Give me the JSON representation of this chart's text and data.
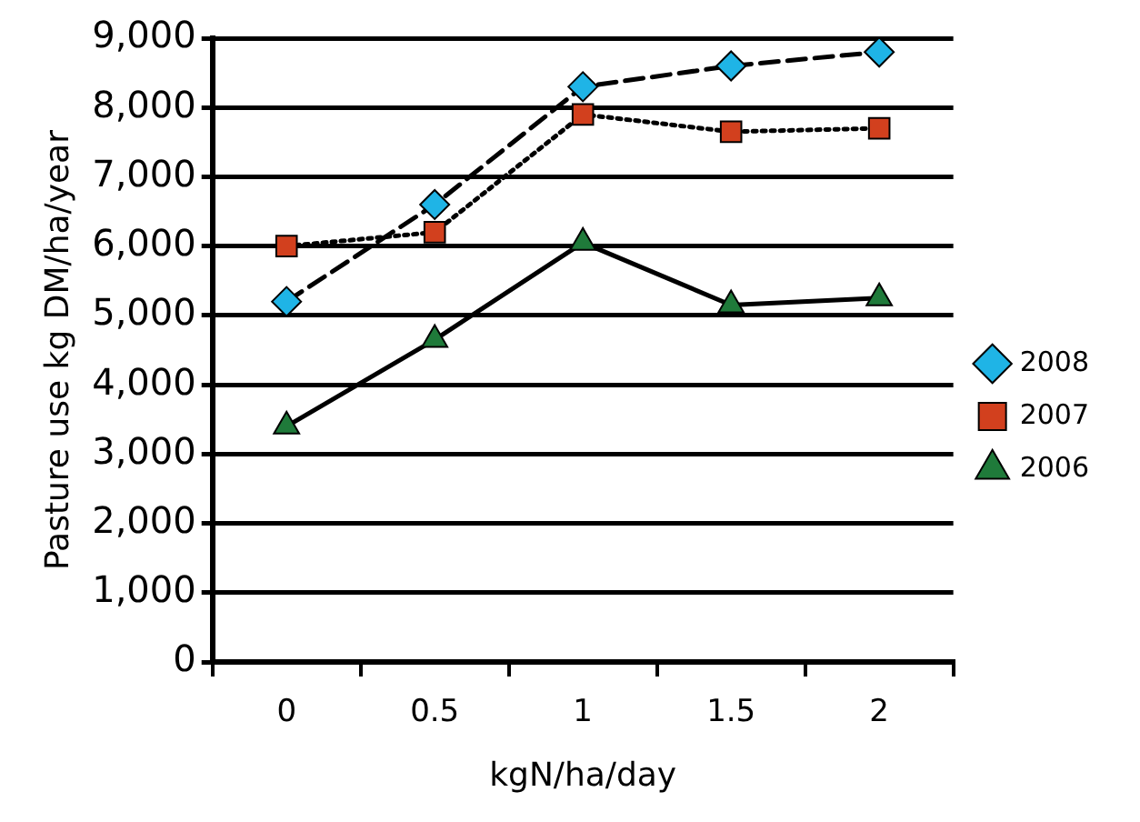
{
  "chart_data": {
    "type": "line",
    "xlabel": "kgN/ha/day",
    "ylabel": "Pasture use kg DM/ha/year",
    "categories": [
      "0",
      "0.5",
      "1",
      "1.5",
      "2"
    ],
    "series": [
      {
        "name": "2008",
        "color": "#1fb4e6",
        "marker": "diamond",
        "line_style": "dashed",
        "values": [
          5200,
          6600,
          8300,
          8600,
          8800
        ]
      },
      {
        "name": "2007",
        "color": "#d2401e",
        "marker": "square",
        "line_style": "dotted",
        "values": [
          6000,
          6200,
          7900,
          7650,
          7700
        ]
      },
      {
        "name": "2006",
        "color": "#1f7a3a",
        "marker": "triangle",
        "line_style": "solid",
        "values": [
          3400,
          4650,
          6050,
          5150,
          5250
        ]
      }
    ],
    "ylim": [
      0,
      9000
    ],
    "yticks": [
      {
        "value": 0,
        "label": "0"
      },
      {
        "value": 1000,
        "label": "1,000"
      },
      {
        "value": 2000,
        "label": "2,000"
      },
      {
        "value": 3000,
        "label": "3,000"
      },
      {
        "value": 4000,
        "label": "4,000"
      },
      {
        "value": 5000,
        "label": "5,000"
      },
      {
        "value": 6000,
        "label": "6,000"
      },
      {
        "value": 7000,
        "label": "7,000"
      },
      {
        "value": 8000,
        "label": "8,000"
      },
      {
        "value": 9000,
        "label": "9,000"
      }
    ],
    "grid": "y",
    "legend": "right"
  }
}
